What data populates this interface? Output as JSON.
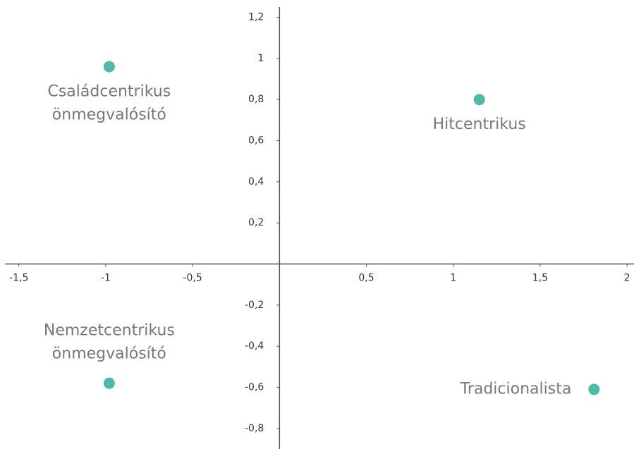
{
  "chart_data": {
    "type": "scatter",
    "xlim": [
      -1.58,
      2.04
    ],
    "ylim": [
      -0.9,
      1.25
    ],
    "xticks": [
      {
        "value": -1.5,
        "label": "-1,5"
      },
      -1,
      {
        "value": -0.5,
        "label": "-0,5"
      },
      {
        "value": 0.5,
        "label": "0,5"
      },
      1,
      {
        "value": 1.5,
        "label": "1,5"
      },
      2
    ],
    "yticks": [
      {
        "value": 1.2,
        "label": "1,2"
      },
      1,
      {
        "value": 0.8,
        "label": "0,8"
      },
      {
        "value": 0.6,
        "label": "0,6"
      },
      {
        "value": 0.4,
        "label": "0,4"
      },
      {
        "value": 0.2,
        "label": "0,2"
      },
      {
        "value": -0.2,
        "label": "-0,2"
      },
      {
        "value": -0.4,
        "label": "-0,4"
      },
      {
        "value": -0.6,
        "label": "-0,6"
      },
      {
        "value": -0.8,
        "label": "-0,8"
      }
    ],
    "color": "#4dbba6",
    "points": [
      {
        "label": [
          "Családcentrikus",
          "önmegvalósító"
        ],
        "x": -0.98,
        "y": 0.96,
        "label_position": "below"
      },
      {
        "label": [
          "Hitcentrikus"
        ],
        "x": 1.15,
        "y": 0.8,
        "label_position": "below"
      },
      {
        "label": [
          "Nemzetcentrikus",
          "önmegvalósító"
        ],
        "x": -0.98,
        "y": -0.58,
        "label_position": "above"
      },
      {
        "label": [
          "Tradicionalista"
        ],
        "x": 1.81,
        "y": -0.61,
        "label_position": "left"
      }
    ]
  }
}
